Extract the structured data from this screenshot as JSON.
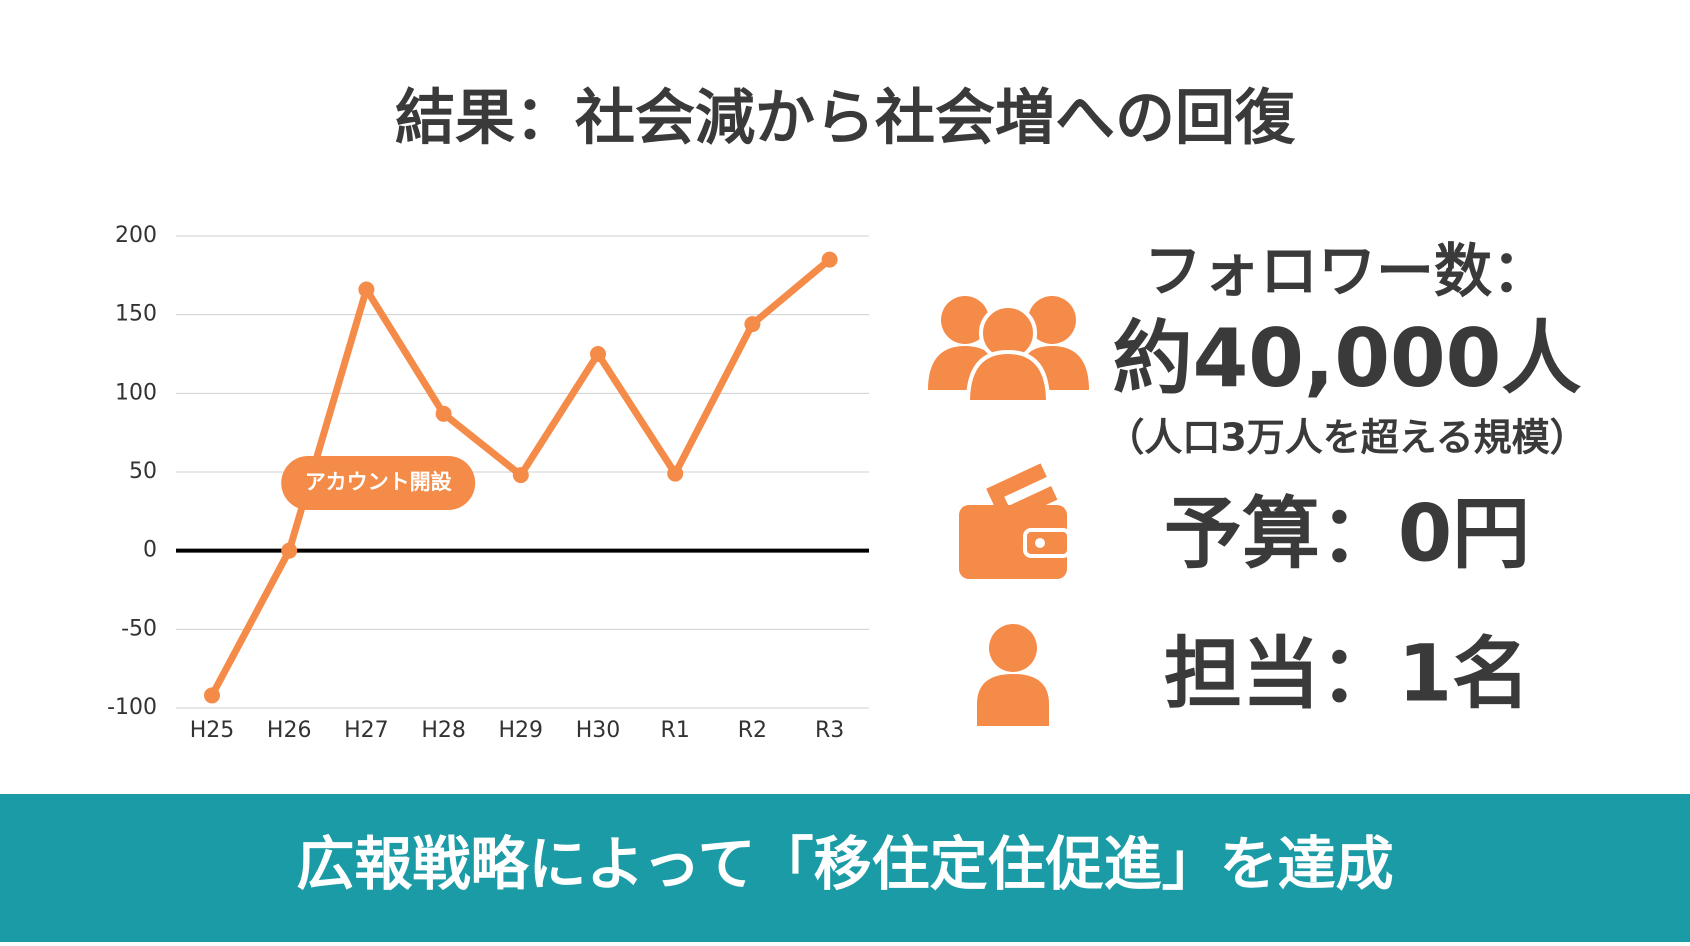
{
  "title": "結果：社会減から社会増への回復",
  "chart_data": {
    "type": "line",
    "categories": [
      "H25",
      "H26",
      "H27",
      "H28",
      "H29",
      "H30",
      "R1",
      "R2",
      "R3"
    ],
    "values": [
      -92,
      0,
      166,
      87,
      48,
      125,
      49,
      144,
      185
    ],
    "color": "#f58b48",
    "ylim": [
      -100,
      200
    ],
    "yticks": [
      -100,
      -50,
      0,
      50,
      100,
      150,
      200
    ],
    "grid": true,
    "annotation": "アカウント開設"
  },
  "stats": {
    "followers_label": "フォロワー数：",
    "followers_value": "約40,000人",
    "followers_note": "（人口3万人を超える規模）",
    "budget": "予算：0円",
    "staff": "担当：1名"
  },
  "footer": "広報戦略によって「移住定住促進」を達成"
}
